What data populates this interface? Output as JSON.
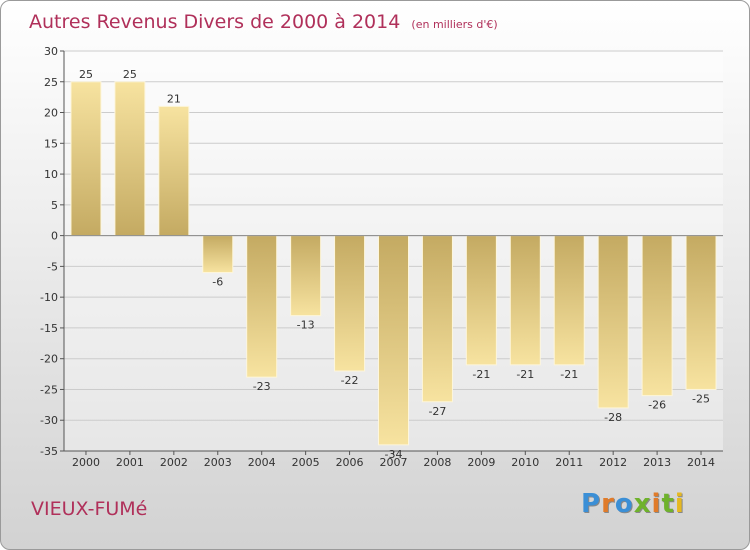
{
  "title": "Autres Revenus Divers de 2000 à 2014",
  "subtitle": "(en milliers d'€)",
  "commune": "VIEUX-FUMé",
  "logo": {
    "text": "Proxiti",
    "letters": [
      {
        "ch": "P",
        "color": "#3b8fd6"
      },
      {
        "ch": "r",
        "color": "#e07b2a"
      },
      {
        "ch": "o",
        "color": "#3b8fd6"
      },
      {
        "ch": "x",
        "color": "#6fb22c"
      },
      {
        "ch": "i",
        "color": "#e07b2a"
      },
      {
        "ch": "t",
        "color": "#6fb22c"
      },
      {
        "ch": "i",
        "color": "#e6b820"
      }
    ]
  },
  "colors": {
    "title": "#b0305a",
    "bar_dark": "#c4aa62",
    "bar_light": "#f7e3a0",
    "grid": "#cccccc",
    "zero_line": "#888888"
  },
  "chart_data": {
    "type": "bar",
    "categories": [
      "2000",
      "2001",
      "2002",
      "2003",
      "2004",
      "2005",
      "2006",
      "2007",
      "2008",
      "2009",
      "2010",
      "2011",
      "2012",
      "2013",
      "2014"
    ],
    "values": [
      25,
      25,
      21,
      -6,
      -23,
      -13,
      -22,
      -34,
      -27,
      -21,
      -21,
      -21,
      -28,
      -26,
      -25
    ],
    "data_labels": [
      "25",
      "25",
      "21",
      "-6",
      "-23",
      "-13",
      "-22",
      "-34",
      "-27",
      "-21",
      "-21",
      "-21",
      "-28",
      "-26",
      "-25"
    ],
    "yticks": [
      30,
      25,
      20,
      15,
      10,
      5,
      0,
      -5,
      -10,
      -15,
      -20,
      -25,
      -30,
      -35
    ],
    "ylim": [
      -35,
      30
    ],
    "grid": "horizontal"
  }
}
